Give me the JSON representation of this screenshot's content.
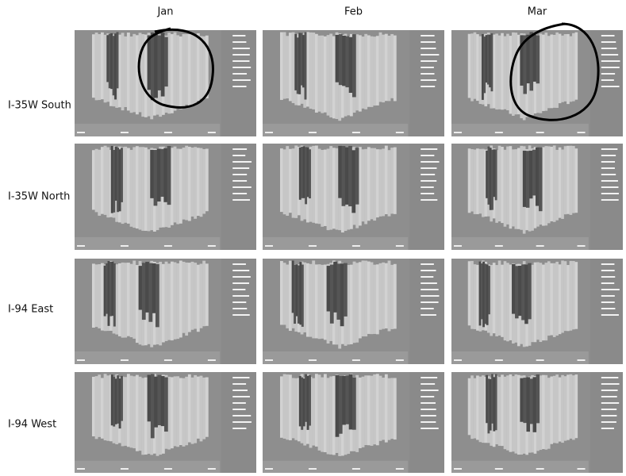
{
  "columns": [
    "Jan",
    "Feb",
    "Mar"
  ],
  "rows": [
    "I-35W South",
    "I-35W North",
    "I-94 East",
    "I-94 West"
  ]
}
